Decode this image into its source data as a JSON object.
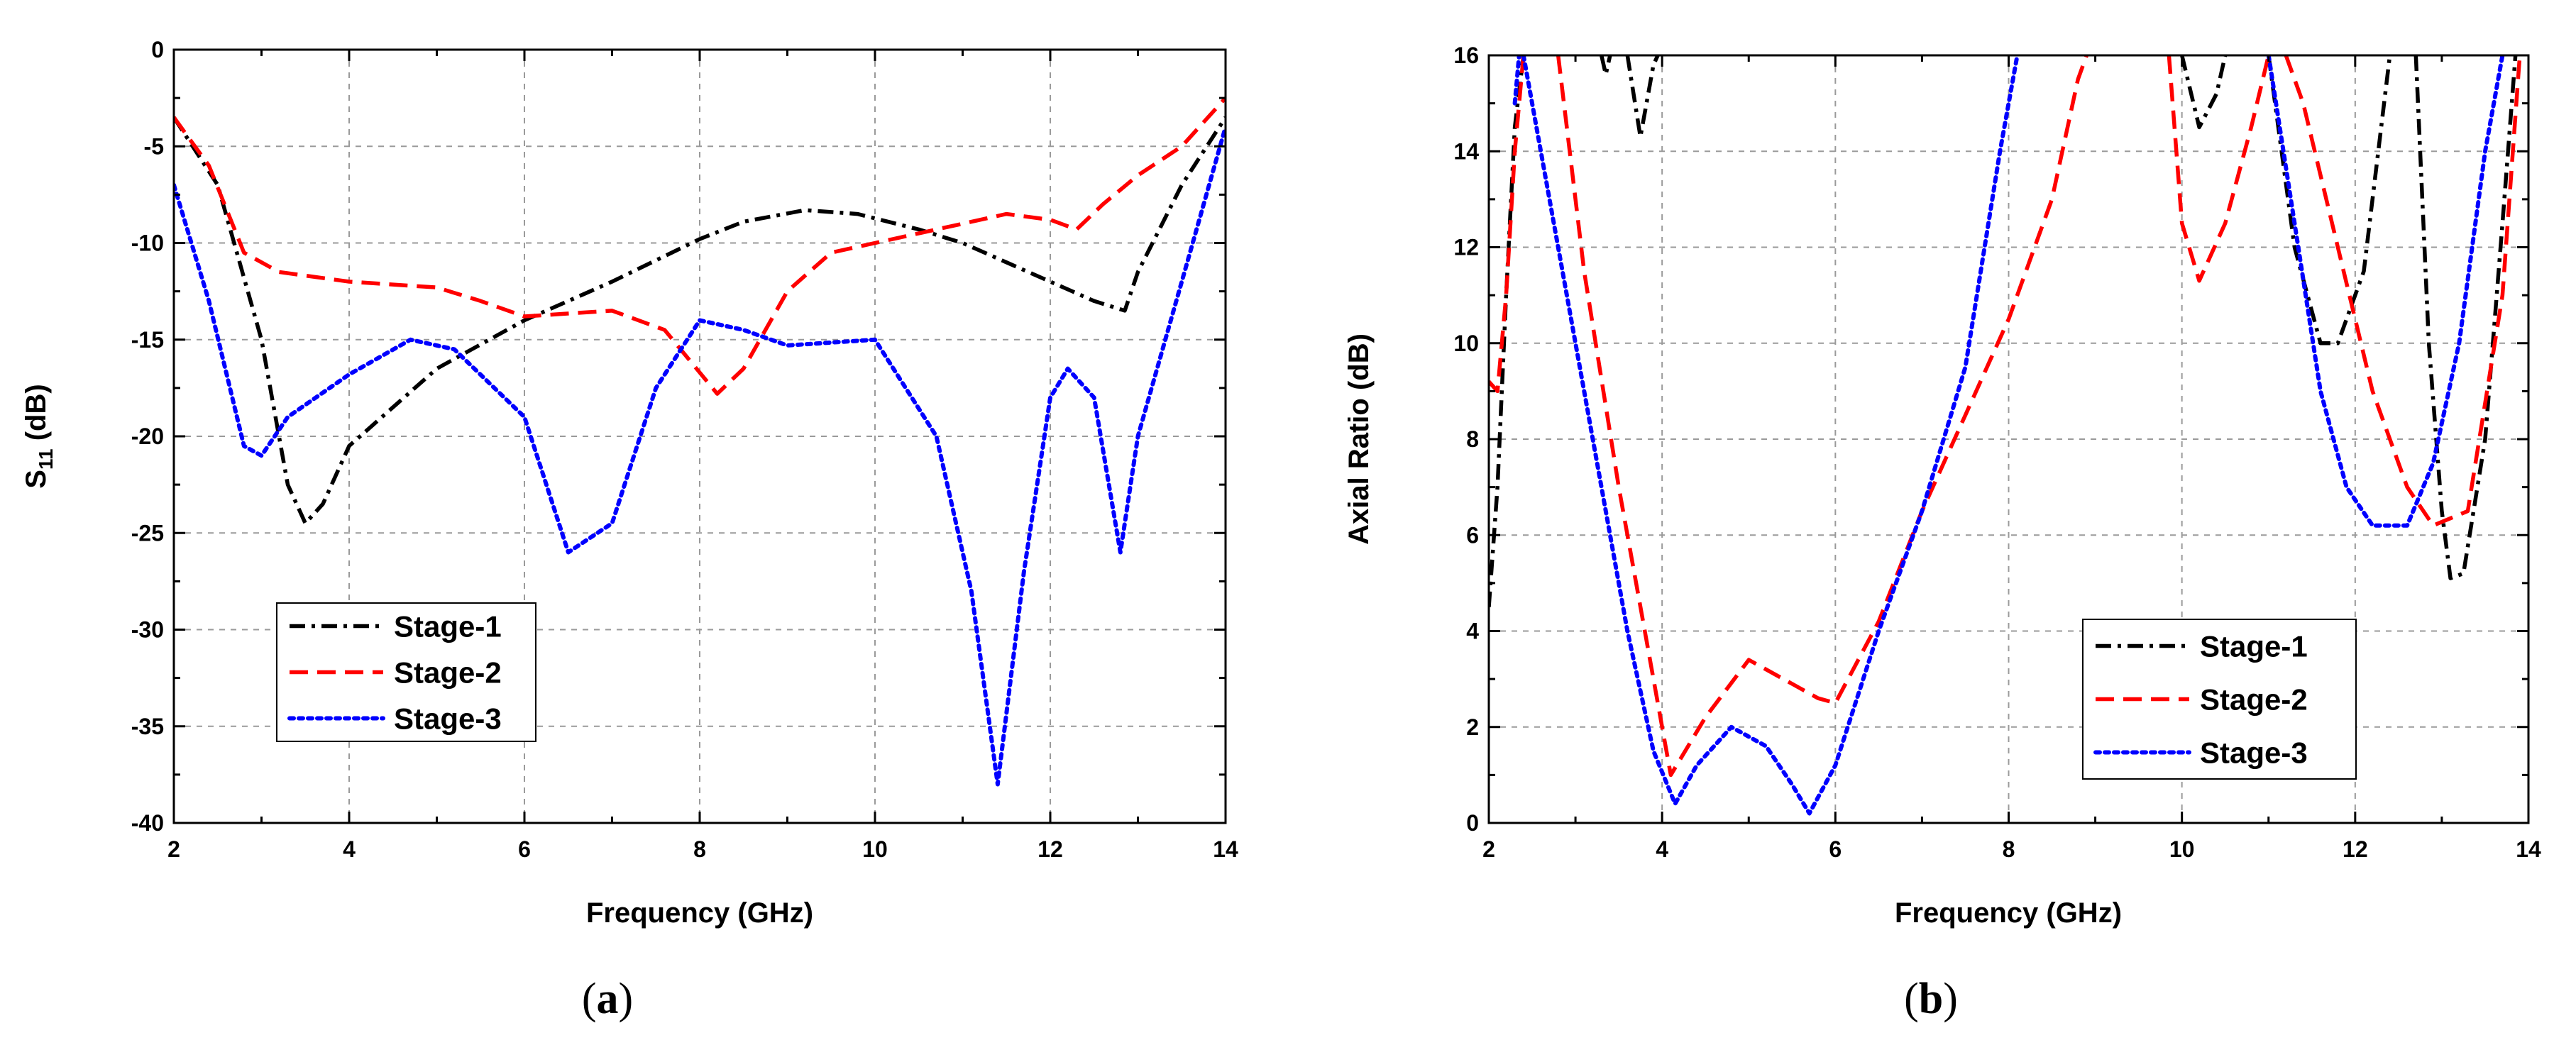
{
  "chart_data": [
    {
      "type": "line",
      "panel": "a",
      "caption_letter": "a",
      "xlabel": "Frequency (GHz)",
      "ylabel_main": "S",
      "ylabel_sub": "11",
      "ylabel_unit": " (dB)",
      "xlim": [
        2,
        14
      ],
      "ylim": [
        -40,
        0
      ],
      "xticks": [
        2,
        4,
        6,
        8,
        10,
        12,
        14
      ],
      "yticks": [
        0,
        -5,
        -10,
        -15,
        -20,
        -25,
        -30,
        -35,
        -40
      ],
      "grid": true,
      "legend_position": "bottom-left",
      "series": [
        {
          "name": "Stage-1",
          "color": "#000000",
          "dash": "dashdot",
          "points": [
            [
              2,
              -3.5
            ],
            [
              2.5,
              -7
            ],
            [
              3,
              -15
            ],
            [
              3.3,
              -22.5
            ],
            [
              3.5,
              -24.5
            ],
            [
              3.7,
              -23.5
            ],
            [
              4,
              -20.5
            ],
            [
              5,
              -16.5
            ],
            [
              6,
              -14
            ],
            [
              7,
              -12
            ],
            [
              8,
              -9.8
            ],
            [
              8.5,
              -8.9
            ],
            [
              9.2,
              -8.3
            ],
            [
              9.8,
              -8.5
            ],
            [
              10.5,
              -9.3
            ],
            [
              11,
              -10
            ],
            [
              11.5,
              -11
            ],
            [
              12,
              -12
            ],
            [
              12.5,
              -13
            ],
            [
              12.85,
              -13.5
            ],
            [
              13,
              -11.5
            ],
            [
              13.5,
              -7
            ],
            [
              14,
              -3.5
            ]
          ]
        },
        {
          "name": "Stage-2",
          "color": "#ff0000",
          "dash": "dash",
          "points": [
            [
              2,
              -3.5
            ],
            [
              2.4,
              -6
            ],
            [
              2.8,
              -10.5
            ],
            [
              3.2,
              -11.5
            ],
            [
              4,
              -12
            ],
            [
              5,
              -12.3
            ],
            [
              5.5,
              -13
            ],
            [
              6,
              -13.8
            ],
            [
              7,
              -13.5
            ],
            [
              7.6,
              -14.5
            ],
            [
              8.2,
              -17.8
            ],
            [
              8.5,
              -16.5
            ],
            [
              9,
              -12.5
            ],
            [
              9.5,
              -10.5
            ],
            [
              10,
              -10
            ],
            [
              10.5,
              -9.5
            ],
            [
              11,
              -9
            ],
            [
              11.5,
              -8.5
            ],
            [
              12,
              -8.8
            ],
            [
              12.3,
              -9.3
            ],
            [
              12.6,
              -8
            ],
            [
              13,
              -6.5
            ],
            [
              13.5,
              -5
            ],
            [
              14,
              -2.5
            ]
          ]
        },
        {
          "name": "Stage-3",
          "color": "#0000ff",
          "dash": "dot",
          "points": [
            [
              2,
              -7
            ],
            [
              2.4,
              -13
            ],
            [
              2.8,
              -20.5
            ],
            [
              3,
              -21
            ],
            [
              3.3,
              -19
            ],
            [
              4,
              -16.8
            ],
            [
              4.7,
              -15
            ],
            [
              5.2,
              -15.5
            ],
            [
              6,
              -19
            ],
            [
              6.5,
              -26
            ],
            [
              7,
              -24.5
            ],
            [
              7.5,
              -17.5
            ],
            [
              8,
              -14
            ],
            [
              8.5,
              -14.5
            ],
            [
              9,
              -15.3
            ],
            [
              10,
              -15
            ],
            [
              10.7,
              -20
            ],
            [
              11.1,
              -28
            ],
            [
              11.4,
              -38
            ],
            [
              11.7,
              -27
            ],
            [
              12,
              -18
            ],
            [
              12.2,
              -16.5
            ],
            [
              12.5,
              -18
            ],
            [
              12.8,
              -26
            ],
            [
              13,
              -20
            ],
            [
              13.5,
              -12
            ],
            [
              14,
              -4
            ]
          ]
        }
      ]
    },
    {
      "type": "line",
      "panel": "b",
      "caption_letter": "b",
      "xlabel": "Frequency (GHz)",
      "ylabel": "Axial Ratio (dB)",
      "xlim": [
        2,
        14
      ],
      "ylim": [
        0,
        16
      ],
      "xticks": [
        2,
        4,
        6,
        8,
        10,
        12,
        14
      ],
      "yticks": [
        0,
        2,
        4,
        6,
        8,
        10,
        12,
        14,
        16
      ],
      "grid": true,
      "legend_position": "bottom-right",
      "series": [
        {
          "name": "Stage-1",
          "color": "#000000",
          "dash": "dashdot",
          "segments": [
            [
              [
                2,
                4.5
              ],
              [
                2.1,
                7
              ],
              [
                2.2,
                11
              ],
              [
                2.3,
                14.5
              ],
              [
                2.4,
                16
              ]
            ],
            [
              [
                3.3,
                16
              ],
              [
                3.35,
                15.6
              ],
              [
                3.4,
                16
              ]
            ],
            [
              [
                3.6,
                16
              ],
              [
                3.75,
                14.3
              ],
              [
                3.9,
                15.8
              ],
              [
                3.95,
                16
              ]
            ],
            [
              [
                10,
                16
              ],
              [
                10.2,
                14.5
              ],
              [
                10.4,
                15.2
              ],
              [
                10.5,
                16
              ]
            ],
            [
              [
                11,
                16
              ],
              [
                11.3,
                12
              ],
              [
                11.6,
                10
              ],
              [
                11.8,
                10
              ],
              [
                12.1,
                11.5
              ],
              [
                12.4,
                16
              ]
            ],
            [
              [
                12.7,
                16
              ],
              [
                12.85,
                10
              ],
              [
                13,
                6.5
              ],
              [
                13.1,
                5.1
              ],
              [
                13.25,
                5.2
              ],
              [
                13.5,
                8
              ],
              [
                13.7,
                12.5
              ],
              [
                13.85,
                16
              ]
            ]
          ]
        },
        {
          "name": "Stage-2",
          "color": "#ff0000",
          "dash": "dash",
          "segments": [
            [
              [
                2,
                9.2
              ],
              [
                2.1,
                9
              ],
              [
                2.2,
                11
              ],
              [
                2.3,
                14
              ],
              [
                2.4,
                16
              ]
            ],
            [
              [
                2.8,
                16
              ],
              [
                3.1,
                11.5
              ],
              [
                3.5,
                7
              ],
              [
                3.8,
                4
              ],
              [
                4.1,
                1
              ],
              [
                4.5,
                2.2
              ],
              [
                5,
                3.4
              ],
              [
                5.5,
                2.9
              ],
              [
                5.8,
                2.6
              ],
              [
                6,
                2.5
              ],
              [
                6.5,
                4.2
              ],
              [
                7,
                6.5
              ],
              [
                7.5,
                8.5
              ],
              [
                8,
                10.5
              ],
              [
                8.5,
                13
              ],
              [
                8.8,
                15.5
              ],
              [
                8.9,
                16
              ]
            ],
            [
              [
                9.85,
                16
              ],
              [
                10,
                12.5
              ],
              [
                10.2,
                11.3
              ],
              [
                10.5,
                12.5
              ],
              [
                10.8,
                14.5
              ],
              [
                11,
                16
              ]
            ],
            [
              [
                11.2,
                16
              ],
              [
                11.4,
                15
              ],
              [
                11.8,
                12
              ],
              [
                12.2,
                9
              ],
              [
                12.6,
                7
              ],
              [
                12.9,
                6.2
              ],
              [
                13.3,
                6.5
              ],
              [
                13.7,
                11
              ],
              [
                13.9,
                16
              ]
            ]
          ]
        },
        {
          "name": "Stage-3",
          "color": "#0000ff",
          "dash": "dot",
          "segments": [
            [
              [
                2.3,
                15
              ],
              [
                2.35,
                16
              ]
            ],
            [
              [
                2.4,
                16
              ],
              [
                2.8,
                12
              ],
              [
                3.2,
                8
              ],
              [
                3.6,
                4
              ],
              [
                3.9,
                1.5
              ],
              [
                4.15,
                0.4
              ],
              [
                4.4,
                1.2
              ],
              [
                4.8,
                2
              ],
              [
                5.2,
                1.6
              ],
              [
                5.5,
                0.8
              ],
              [
                5.7,
                0.2
              ],
              [
                6,
                1.2
              ],
              [
                6.5,
                4
              ],
              [
                7,
                6.5
              ],
              [
                7.5,
                9.5
              ],
              [
                7.9,
                14
              ],
              [
                8.1,
                16
              ]
            ],
            [
              [
                11,
                16
              ],
              [
                11.3,
                12.5
              ],
              [
                11.6,
                9
              ],
              [
                11.9,
                7
              ],
              [
                12.2,
                6.2
              ],
              [
                12.6,
                6.2
              ],
              [
                12.9,
                7.5
              ],
              [
                13.2,
                10
              ],
              [
                13.5,
                14
              ],
              [
                13.7,
                16
              ]
            ]
          ]
        }
      ]
    }
  ]
}
